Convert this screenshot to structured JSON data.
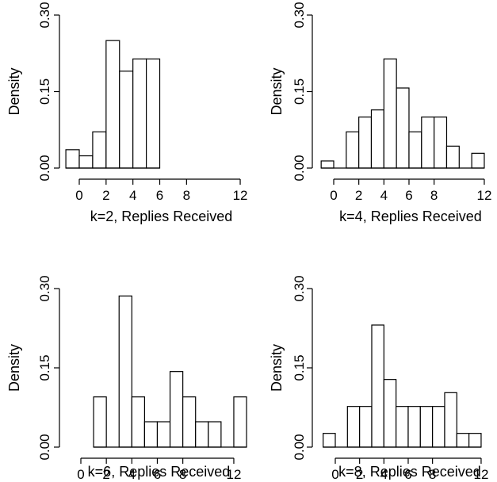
{
  "chart_data": [
    {
      "type": "bar",
      "xlabel": "k=2, Replies Received",
      "ylabel": "Density",
      "x_ticks": [
        "0",
        "2",
        "4",
        "6",
        "8",
        "12"
      ],
      "y_ticks": [
        "0.00",
        "0.15",
        "0.30"
      ],
      "xlim": [
        -1,
        13
      ],
      "ylim": [
        0,
        0.3
      ],
      "bin_width": 1,
      "bin_starts": [
        -1,
        0,
        1,
        2,
        3,
        4,
        5
      ],
      "values": [
        0.036,
        0.024,
        0.071,
        0.25,
        0.19,
        0.214,
        0.214
      ]
    },
    {
      "type": "bar",
      "xlabel": "k=4, Replies Received",
      "ylabel": "Density",
      "x_ticks": [
        "0",
        "2",
        "4",
        "6",
        "8",
        "12"
      ],
      "y_ticks": [
        "0.00",
        "0.15",
        "0.30"
      ],
      "xlim": [
        -1,
        13
      ],
      "ylim": [
        0,
        0.3
      ],
      "bin_width": 1,
      "bin_starts": [
        -1,
        0,
        1,
        2,
        3,
        4,
        5,
        6,
        7,
        8,
        9,
        10,
        11
      ],
      "values": [
        0.014,
        0.0,
        0.071,
        0.1,
        0.114,
        0.214,
        0.157,
        0.071,
        0.1,
        0.1,
        0.043,
        0.0,
        0.029
      ]
    },
    {
      "type": "bar",
      "xlabel": "k=6, Replies Received",
      "ylabel": "Density",
      "x_ticks": [
        "0",
        "2",
        "4",
        "6",
        "8",
        "12"
      ],
      "y_ticks": [
        "0.00",
        "0.15",
        "0.30"
      ],
      "xlim": [
        -1,
        13
      ],
      "ylim": [
        0,
        0.3
      ],
      "bin_width": 1,
      "bin_starts": [
        1,
        2,
        3,
        4,
        5,
        6,
        7,
        8,
        9,
        10,
        11,
        12
      ],
      "values": [
        0.095,
        0.0,
        0.286,
        0.095,
        0.048,
        0.048,
        0.143,
        0.095,
        0.048,
        0.048,
        0.0,
        0.095
      ]
    },
    {
      "type": "bar",
      "xlabel": "k=8, Replies Received",
      "ylabel": "Density",
      "x_ticks": [
        "0",
        "2",
        "4",
        "6",
        "8",
        "12"
      ],
      "y_ticks": [
        "0.00",
        "0.15",
        "0.30"
      ],
      "xlim": [
        -1,
        13
      ],
      "ylim": [
        0,
        0.3
      ],
      "bin_width": 1,
      "bin_starts": [
        -1,
        0,
        1,
        2,
        3,
        4,
        5,
        6,
        7,
        8,
        9,
        10,
        11
      ],
      "values": [
        0.026,
        0.0,
        0.077,
        0.077,
        0.231,
        0.128,
        0.077,
        0.077,
        0.077,
        0.077,
        0.103,
        0.026,
        0.026
      ]
    }
  ]
}
